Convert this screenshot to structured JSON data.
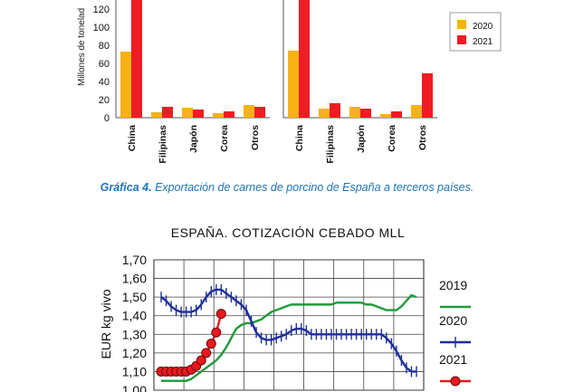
{
  "chart_data": [
    {
      "type": "bar",
      "title": "",
      "ylabel": "Millones de tonelad",
      "ylim": [
        0,
        140
      ],
      "yticks": [
        0,
        20,
        40,
        60,
        80,
        100,
        120
      ],
      "legend": {
        "placement": "right",
        "entries": [
          "2020",
          "2021"
        ]
      },
      "colors": {
        "2020": "#f9b115",
        "2021": "#ee1c23"
      },
      "panels": [
        {
          "categories": [
            "China",
            "Filipinas",
            "Japón",
            "Corea",
            "Otros"
          ],
          "series": [
            {
              "name": "2020",
              "values": [
                73,
                6,
                11,
                5,
                14
              ]
            },
            {
              "name": "2021",
              "values": [
                140,
                12,
                9,
                7,
                12
              ]
            }
          ]
        },
        {
          "categories": [
            "China",
            "Filipinas",
            "Japón",
            "Corea",
            "Otros"
          ],
          "series": [
            {
              "name": "2020",
              "values": [
                74,
                10,
                12,
                4,
                14
              ]
            },
            {
              "name": "2021",
              "values": [
                140,
                16,
                10,
                7,
                49
              ]
            }
          ]
        }
      ]
    },
    {
      "type": "line",
      "title": "ESPAÑA. COTIZACIÓN CEBADO MLL",
      "ylabel": "EUR kg vivo",
      "ylim": [
        1.0,
        1.7
      ],
      "yticks": [
        "1,70",
        "1,60",
        "1,50",
        "1,40",
        "1,30",
        "1,20",
        "1,10",
        "1,00"
      ],
      "grid": true,
      "legend": {
        "placement": "right",
        "entries": [
          "2019",
          "2020",
          "2021"
        ]
      },
      "x_week": true,
      "series": [
        {
          "name": "2019",
          "color": "#1f9a3a",
          "x": [
            1,
            2,
            3,
            4,
            5,
            6,
            7,
            8,
            9,
            10,
            11,
            12,
            13,
            14,
            15,
            16,
            17,
            18,
            19,
            20,
            21,
            22,
            23,
            24,
            25,
            26,
            27,
            28,
            29,
            30,
            31,
            32,
            33,
            34,
            35,
            36,
            37,
            38,
            39,
            40,
            41,
            42,
            43,
            44,
            45,
            46,
            47,
            48,
            49,
            50,
            51,
            52
          ],
          "y": [
            1.05,
            1.05,
            1.05,
            1.05,
            1.05,
            1.05,
            1.06,
            1.08,
            1.1,
            1.12,
            1.14,
            1.16,
            1.19,
            1.23,
            1.28,
            1.33,
            1.35,
            1.36,
            1.36,
            1.37,
            1.38,
            1.4,
            1.42,
            1.43,
            1.44,
            1.45,
            1.46,
            1.46,
            1.46,
            1.46,
            1.46,
            1.46,
            1.46,
            1.46,
            1.46,
            1.47,
            1.47,
            1.47,
            1.47,
            1.47,
            1.47,
            1.46,
            1.46,
            1.45,
            1.44,
            1.43,
            1.43,
            1.43,
            1.45,
            1.48,
            1.51,
            1.5
          ]
        },
        {
          "name": "2020",
          "color": "#1f2f9a",
          "x": [
            1,
            2,
            3,
            4,
            5,
            6,
            7,
            8,
            9,
            10,
            11,
            12,
            13,
            14,
            15,
            16,
            17,
            18,
            19,
            20,
            21,
            22,
            23,
            24,
            25,
            26,
            27,
            28,
            29,
            30,
            31,
            32,
            33,
            34,
            35,
            36,
            37,
            38,
            39,
            40,
            41,
            42,
            43,
            44,
            45,
            46,
            47,
            48,
            49,
            50,
            51,
            52
          ],
          "y": [
            1.5,
            1.48,
            1.45,
            1.43,
            1.42,
            1.42,
            1.42,
            1.43,
            1.46,
            1.5,
            1.53,
            1.54,
            1.54,
            1.52,
            1.5,
            1.48,
            1.46,
            1.43,
            1.37,
            1.31,
            1.28,
            1.27,
            1.27,
            1.28,
            1.29,
            1.3,
            1.32,
            1.33,
            1.33,
            1.32,
            1.3,
            1.3,
            1.3,
            1.3,
            1.3,
            1.3,
            1.3,
            1.3,
            1.3,
            1.3,
            1.3,
            1.3,
            1.3,
            1.3,
            1.3,
            1.28,
            1.25,
            1.21,
            1.16,
            1.12,
            1.1,
            1.1
          ]
        },
        {
          "name": "2021",
          "color": "#e8191e",
          "x": [
            1,
            2,
            3,
            4,
            5,
            6,
            7,
            8,
            9,
            10,
            11,
            12,
            13
          ],
          "y": [
            1.1,
            1.1,
            1.1,
            1.1,
            1.1,
            1.1,
            1.11,
            1.13,
            1.16,
            1.2,
            1.25,
            1.31,
            1.41
          ]
        }
      ]
    }
  ],
  "caption": {
    "label": "Gráfica 4.",
    "text": " Exportación de carnes de porcino de España a terceros países."
  }
}
